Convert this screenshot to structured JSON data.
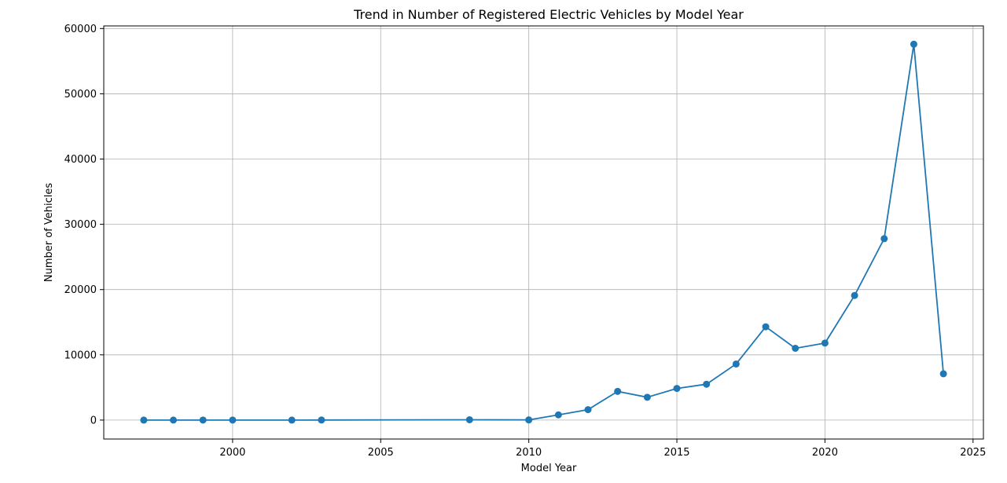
{
  "chart_data": {
    "type": "line",
    "title": "Trend in Number of Registered Electric Vehicles by Model Year",
    "xlabel": "Model Year",
    "ylabel": "Number of Vehicles",
    "xlim": [
      1995.65,
      2025.35
    ],
    "ylim": [
      -2900,
      60400
    ],
    "xticks": [
      2000,
      2005,
      2010,
      2015,
      2020,
      2025
    ],
    "yticks": [
      0,
      10000,
      20000,
      30000,
      40000,
      50000,
      60000
    ],
    "grid": true,
    "series": [
      {
        "color": "#1f77b4",
        "marker": "circle",
        "x": [
          1997,
          1998,
          1999,
          2000,
          2002,
          2003,
          2008,
          2010,
          2011,
          2012,
          2013,
          2014,
          2015,
          2016,
          2017,
          2018,
          2019,
          2020,
          2021,
          2022,
          2023,
          2024
        ],
        "y": [
          1,
          3,
          5,
          7,
          2,
          12,
          50,
          30,
          800,
          1600,
          4400,
          3500,
          4850,
          5500,
          8600,
          14300,
          11000,
          11800,
          19100,
          27800,
          57600,
          7100
        ]
      }
    ]
  }
}
